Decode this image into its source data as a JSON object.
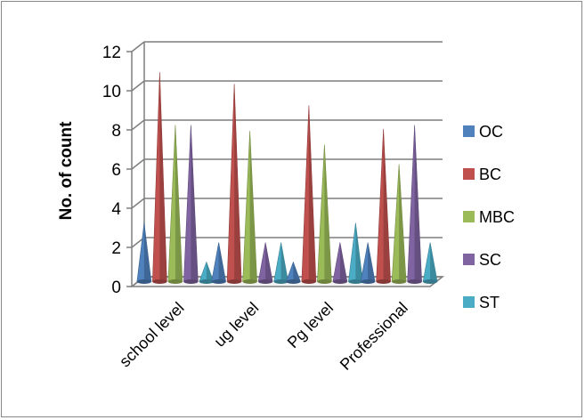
{
  "chart_data": {
    "type": "bar",
    "title": "",
    "xlabel": "",
    "ylabel": "No. of count",
    "ylim": [
      0,
      12
    ],
    "yticks": [
      "0",
      "2",
      "4",
      "6",
      "8",
      "10",
      "12"
    ],
    "categories": [
      "school level",
      "ug level",
      "Pg level",
      "Professional"
    ],
    "series": [
      {
        "name": "OC",
        "values": [
          3,
          2,
          1,
          2
        ]
      },
      {
        "name": "BC",
        "values": [
          10.7,
          10.1,
          9,
          7.8
        ]
      },
      {
        "name": "MBC",
        "values": [
          8,
          7.7,
          7,
          6
        ]
      },
      {
        "name": "SC",
        "values": [
          8,
          2,
          2,
          8
        ]
      },
      {
        "name": "ST",
        "values": [
          1,
          2,
          3,
          2
        ]
      }
    ],
    "colors": [
      "#4F81BD",
      "#C0504D",
      "#9BBB59",
      "#8064A2",
      "#4BACC6"
    ],
    "grid": true,
    "legend_position": "right",
    "style": "3d-cone"
  }
}
